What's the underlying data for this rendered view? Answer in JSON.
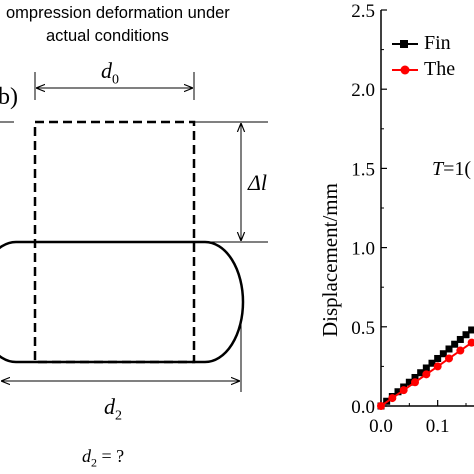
{
  "left_panel": {
    "title_line1": "ompression deformation under",
    "title_line2": "actual conditions",
    "panel_label": "b)",
    "d0_label": "d",
    "d0_sub": "0",
    "dl_label": "Δl",
    "d2_label": "d",
    "d2_sub": "2",
    "question_d": "d",
    "question_sub": "2",
    "question_rest": " = ?"
  },
  "right_panel": {
    "legend": [
      {
        "label": "Fin",
        "color": "#000000",
        "marker": "square"
      },
      {
        "label": "The",
        "color": "#ff0000",
        "marker": "circle"
      }
    ],
    "annotation_T": "T",
    "annotation_rest": "=1("
  },
  "chart_data": {
    "type": "line",
    "ylabel": "Displacement/mm",
    "xlabel": "",
    "ylim": [
      0,
      2.5
    ],
    "xlim": [
      0,
      0.27
    ],
    "y_ticks": [
      "0.0",
      "0.5",
      "1.0",
      "1.5",
      "2.0",
      "2.5"
    ],
    "x_ticks": [
      "0.0",
      "0.1"
    ],
    "series": [
      {
        "name": "Fin",
        "color": "#000000",
        "x": [
          0.0,
          0.01,
          0.02,
          0.03,
          0.04,
          0.05,
          0.06,
          0.07,
          0.08,
          0.09,
          0.1,
          0.11,
          0.12,
          0.13,
          0.14,
          0.15,
          0.16
        ],
        "y": [
          0.0,
          0.03,
          0.06,
          0.09,
          0.12,
          0.15,
          0.18,
          0.21,
          0.24,
          0.27,
          0.3,
          0.33,
          0.36,
          0.39,
          0.42,
          0.45,
          0.48
        ]
      },
      {
        "name": "The",
        "color": "#ff0000",
        "x": [
          0.0,
          0.02,
          0.04,
          0.06,
          0.08,
          0.1,
          0.12,
          0.14,
          0.16
        ],
        "y": [
          0.0,
          0.05,
          0.1,
          0.15,
          0.2,
          0.25,
          0.3,
          0.35,
          0.4
        ]
      }
    ]
  }
}
